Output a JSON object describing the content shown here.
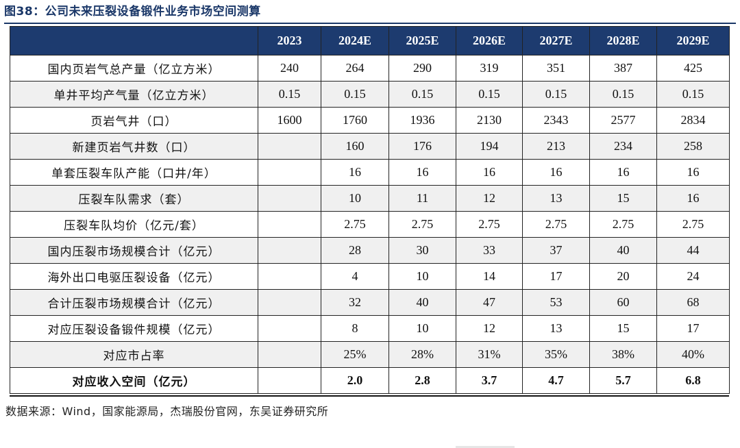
{
  "title": "图38：公司未来压裂设备锻件业务市场空间测算",
  "table": {
    "headers": [
      "",
      "2023",
      "2024E",
      "2025E",
      "2026E",
      "2027E",
      "2028E",
      "2029E"
    ],
    "rows": [
      {
        "label": "国内页岩气总产量（亿立方米）",
        "values": [
          "240",
          "264",
          "290",
          "319",
          "351",
          "387",
          "425"
        ]
      },
      {
        "label": "单井平均产气量（亿立方米）",
        "values": [
          "0.15",
          "0.15",
          "0.15",
          "0.15",
          "0.15",
          "0.15",
          "0.15"
        ]
      },
      {
        "label": "页岩气井（口）",
        "values": [
          "1600",
          "1760",
          "1936",
          "2130",
          "2343",
          "2577",
          "2834"
        ]
      },
      {
        "label": "新建页岩气井数（口）",
        "values": [
          "",
          "160",
          "176",
          "194",
          "213",
          "234",
          "258"
        ]
      },
      {
        "label": "单套压裂车队产能（口井/年）",
        "values": [
          "",
          "16",
          "16",
          "16",
          "16",
          "16",
          "16"
        ]
      },
      {
        "label": "压裂车队需求（套）",
        "values": [
          "",
          "10",
          "11",
          "12",
          "13",
          "15",
          "16"
        ]
      },
      {
        "label": "压裂车队均价（亿元/套）",
        "values": [
          "",
          "2.75",
          "2.75",
          "2.75",
          "2.75",
          "2.75",
          "2.75"
        ]
      },
      {
        "label": "国内压裂市场规模合计（亿元）",
        "values": [
          "",
          "28",
          "30",
          "33",
          "37",
          "40",
          "44"
        ]
      },
      {
        "label": "海外出口电驱压裂设备（亿元）",
        "values": [
          "",
          "4",
          "10",
          "14",
          "17",
          "20",
          "24"
        ]
      },
      {
        "label": "合计压裂市场规模合计（亿元）",
        "values": [
          "",
          "32",
          "40",
          "47",
          "53",
          "60",
          "68"
        ]
      },
      {
        "label": "对应压裂设备锻件规模（亿元）",
        "values": [
          "",
          "8",
          "10",
          "12",
          "13",
          "15",
          "17"
        ]
      },
      {
        "label": "对应市占率",
        "values": [
          "",
          "25%",
          "28%",
          "31%",
          "35%",
          "38%",
          "40%"
        ]
      },
      {
        "label": "对应收入空间（亿元）",
        "values": [
          "",
          "2.0",
          "2.8",
          "3.7",
          "4.7",
          "5.7",
          "6.8"
        ]
      }
    ]
  },
  "source": "数据来源：Wind，国家能源局，杰瑞股份官网，东吴证券研究所",
  "colors": {
    "header_bg": "#1d3b6f",
    "title": "#1a3768",
    "shade": "#f0f0f0"
  }
}
